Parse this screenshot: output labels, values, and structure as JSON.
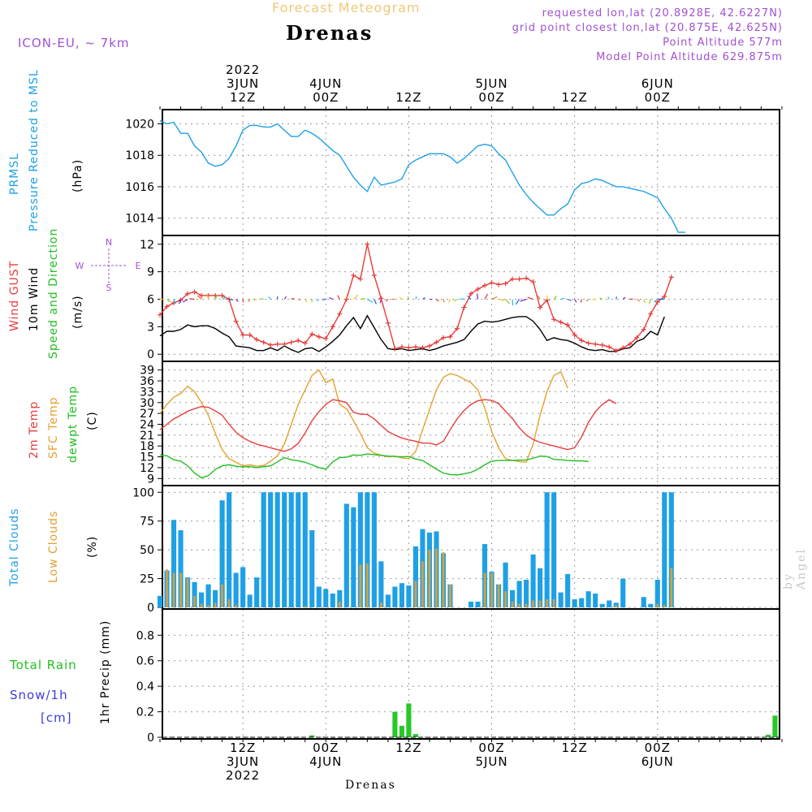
{
  "header": {
    "title": "Forecast Meteogram",
    "location": "Drenas",
    "model": "ICON-EU, ~ 7km",
    "requested": "requested lon,lat (20.8928E, 42.6227N)",
    "grid_point": "grid point closest lon,lat (20.875E, 42.625N)",
    "point_alt": "Point Altitude 577m",
    "model_alt": "Model Point Altitude 629.875m"
  },
  "footer_location": "Drenas",
  "watermark": "by Angel",
  "time_axis": {
    "top_labels": [
      {
        "hour": 12,
        "lines": [
          "2022",
          "3JUN",
          "12Z"
        ]
      },
      {
        "hour": 24,
        "lines": [
          "4JUN",
          "00Z"
        ]
      },
      {
        "hour": 36,
        "lines": [
          "12Z"
        ]
      },
      {
        "hour": 48,
        "lines": [
          "5JUN",
          "00Z"
        ]
      },
      {
        "hour": 60,
        "lines": [
          "12Z"
        ]
      },
      {
        "hour": 72,
        "lines": [
          "6JUN",
          "00Z"
        ]
      }
    ],
    "bottom_labels": [
      {
        "hour": 12,
        "lines": [
          "12Z",
          "3JUN",
          "2022"
        ]
      },
      {
        "hour": 24,
        "lines": [
          "00Z",
          "4JUN"
        ]
      },
      {
        "hour": 36,
        "lines": [
          "12Z"
        ]
      },
      {
        "hour": 48,
        "lines": [
          "00Z",
          "5JUN"
        ]
      },
      {
        "hour": 60,
        "lines": [
          "12Z"
        ]
      },
      {
        "hour": 72,
        "lines": [
          "00Z",
          "6JUN"
        ]
      }
    ]
  },
  "panel_labels": {
    "pressure": [
      {
        "text": "PRMSL",
        "color": "#1ea0e6"
      },
      {
        "text": "Pressure Reduced to MSL",
        "color": "#1ea0e6"
      },
      {
        "text": "(hPa)",
        "color": "#000000"
      }
    ],
    "wind": [
      {
        "text": "Wind GUST",
        "color": "#e83c3c"
      },
      {
        "text": "10m Wind",
        "color": "#000000"
      },
      {
        "text": "Speed and Direction",
        "color": "#20c020"
      },
      {
        "text": "(m/s)",
        "color": "#000000"
      }
    ],
    "wind_compass": {
      "n": "N",
      "s": "S",
      "w": "W",
      "e": "E"
    },
    "temp": [
      {
        "text": "2m Temp",
        "color": "#e83c3c"
      },
      {
        "text": "SFC Temp",
        "color": "#e6a030"
      },
      {
        "text": "dewpt Temp",
        "color": "#20c020"
      },
      {
        "text": "(C)",
        "color": "#000000"
      }
    ],
    "clouds": [
      {
        "text": "Total Clouds",
        "color": "#1ea0e6"
      },
      {
        "text": "Low Clouds",
        "color": "#e6a030"
      },
      {
        "text": "(%)",
        "color": "#000000"
      }
    ],
    "precip_left": [
      {
        "text": "Total  Rain",
        "color": "#20c020"
      },
      {
        "text": "Snow/1h",
        "color": "#3c3cdc"
      },
      {
        "text": "[cm]",
        "color": "#3c3cdc"
      }
    ],
    "precip_axis": "1hr Precip (mm)"
  },
  "colors": {
    "pressure": "#1ea0e6",
    "gust": "#e83c3c",
    "wind": "#000000",
    "t2m": "#e83c3c",
    "sfc": "#e6a030",
    "dew": "#20c020",
    "total_clouds": "#1ea0e6",
    "low_clouds": "#d6a040",
    "rain": "#28c828"
  },
  "chart_data": [
    {
      "type": "line",
      "name": "pressure",
      "ylim": [
        1013,
        1020.7
      ],
      "yticks": [
        1014,
        1016,
        1018,
        1020
      ],
      "series": [
        {
          "name": "PRMSL",
          "x": [
            0,
            1,
            2,
            3,
            4,
            5,
            6,
            7,
            8,
            9,
            10,
            11,
            12,
            13,
            14,
            15,
            16,
            17,
            18,
            19,
            20,
            21,
            22,
            23,
            24,
            25,
            26,
            27,
            28,
            29,
            30,
            31,
            32,
            33,
            34,
            35,
            36,
            37,
            38,
            39,
            40,
            41,
            42,
            43,
            44,
            45,
            46,
            47,
            48,
            49,
            50,
            51,
            52,
            53,
            54,
            55,
            56,
            57,
            58,
            59,
            60,
            61,
            62,
            63,
            64,
            65,
            66,
            67,
            68,
            69,
            70,
            71,
            72,
            73,
            74,
            75,
            76,
            77,
            78,
            79,
            80,
            81,
            82,
            83,
            84,
            85,
            86,
            87,
            88,
            89,
            90
          ],
          "values": [
            1020.2,
            1020.0,
            1020.1,
            1019.4,
            1019.4,
            1018.6,
            1018.2,
            1017.5,
            1017.3,
            1017.4,
            1017.8,
            1018.6,
            1019.6,
            1019.9,
            1019.9,
            1019.8,
            1019.8,
            1020.0,
            1019.6,
            1019.2,
            1019.2,
            1019.6,
            1019.4,
            1019.1,
            1018.7,
            1018.3,
            1018.0,
            1017.3,
            1016.6,
            1016.1,
            1015.7,
            1016.6,
            1016.1,
            1016.2,
            1016.3,
            1016.5,
            1017.4,
            1017.7,
            1017.9,
            1018.1,
            1018.1,
            1018.1,
            1017.9,
            1017.5,
            1017.8,
            1018.2,
            1018.6,
            1018.7,
            1018.6,
            1018.1,
            1017.7,
            1016.9,
            1016.1,
            1015.5,
            1015.0,
            1014.6,
            1014.2,
            1014.2,
            1014.6,
            1014.9,
            1015.8,
            1016.2,
            1016.3,
            1016.5,
            1016.4,
            1016.2,
            1016.0,
            1016.0,
            1015.9,
            1015.8,
            1015.7,
            1015.5,
            1015.3,
            1014.6,
            1014.0,
            1013.1,
            1013.1,
            null,
            null,
            null,
            null,
            null,
            null,
            null,
            null,
            null,
            null,
            null,
            null,
            null,
            null
          ]
        }
      ]
    },
    {
      "type": "line",
      "name": "wind",
      "ylim": [
        -0.6,
        12.6
      ],
      "yticks": [
        0,
        3,
        6,
        9,
        12
      ],
      "series": [
        {
          "name": "Wind GUST",
          "values": [
            4.3,
            5.2,
            5.6,
            5.9,
            6.6,
            6.8,
            6.4,
            6.4,
            6.4,
            6.4,
            6.0,
            3.6,
            2.1,
            2.1,
            1.6,
            1.3,
            1.0,
            1.1,
            1.1,
            1.3,
            1.5,
            1.2,
            2.2,
            1.9,
            1.7,
            3.0,
            4.4,
            6.0,
            8.6,
            8.2,
            12.0,
            8.6,
            6.1,
            3.4,
            0.6,
            0.8,
            0.7,
            0.8,
            0.7,
            0.9,
            1.3,
            1.8,
            1.9,
            2.8,
            5.1,
            6.6,
            7.1,
            7.5,
            7.8,
            7.6,
            7.7,
            8.2,
            8.2,
            8.3,
            7.9,
            5.1,
            5.9,
            3.8,
            3.5,
            3.2,
            2.1,
            1.5,
            1.2,
            1.1,
            1.0,
            0.8,
            0.4,
            0.7,
            1.1,
            1.8,
            2.7,
            4.4,
            5.7,
            6.3,
            8.4
          ]
        },
        {
          "name": "10m Wind",
          "values": [
            2.0,
            2.5,
            2.5,
            2.7,
            3.2,
            3.0,
            3.1,
            3.1,
            2.8,
            2.3,
            1.9,
            0.9,
            0.8,
            0.7,
            0.4,
            0.4,
            0.7,
            0.4,
            0.9,
            0.5,
            0.2,
            0.6,
            0.7,
            0.3,
            0.8,
            1.4,
            2.1,
            3.1,
            4.0,
            2.8,
            4.2,
            2.9,
            1.6,
            0.6,
            0.5,
            0.6,
            0.4,
            0.5,
            0.6,
            0.4,
            0.6,
            0.9,
            1.1,
            1.3,
            1.6,
            2.5,
            3.3,
            3.6,
            3.5,
            3.6,
            3.8,
            4.0,
            4.1,
            4.1,
            3.6,
            2.7,
            1.5,
            1.8,
            1.6,
            1.5,
            1.2,
            0.8,
            0.5,
            0.4,
            0.5,
            0.3,
            0.3,
            0.6,
            0.7,
            1.4,
            1.7,
            2.5,
            2.1,
            4.1,
            null
          ]
        }
      ]
    },
    {
      "type": "line",
      "name": "temperature",
      "ylim": [
        7.5,
        40.5
      ],
      "yticks": [
        9,
        12,
        15,
        18,
        21,
        24,
        27,
        30,
        33,
        36,
        39
      ],
      "series": [
        {
          "name": "2m Temp",
          "values": [
            22.5,
            24.0,
            25.5,
            26.5,
            27.6,
            28.3,
            28.9,
            28.7,
            27.7,
            26.5,
            24.0,
            21.8,
            20.3,
            19.3,
            18.5,
            18.0,
            17.5,
            17.0,
            16.5,
            17.2,
            18.7,
            21.6,
            25.0,
            27.5,
            29.5,
            30.8,
            30.5,
            30.0,
            27.3,
            26.8,
            26.7,
            25.5,
            23.7,
            22.0,
            21.0,
            20.2,
            19.7,
            19.3,
            18.8,
            18.8,
            18.3,
            19.3,
            22.5,
            25.5,
            27.8,
            29.5,
            30.5,
            30.8,
            30.6,
            29.7,
            27.6,
            25.6,
            23.0,
            21.0,
            19.8,
            19.0,
            18.5,
            18.0,
            17.5,
            17.0,
            17.5,
            20.5,
            24.5,
            27.5,
            29.5,
            30.8,
            29.7
          ]
        },
        {
          "name": "SFC Temp",
          "values": [
            27.0,
            29.5,
            31.5,
            32.5,
            34.5,
            33.0,
            30.0,
            26.5,
            21.5,
            17.0,
            14.5,
            13.5,
            12.5,
            12.8,
            12.4,
            12.6,
            13.8,
            15.3,
            18.5,
            24.0,
            29.5,
            33.5,
            37.5,
            39.0,
            35.5,
            36.5,
            29.5,
            28.3,
            25.0,
            21.5,
            17.5,
            16.0,
            15.5,
            15.0,
            15.2,
            14.7,
            14.5,
            16.5,
            22.5,
            28.0,
            33.5,
            37.0,
            38.0,
            37.5,
            36.5,
            35.5,
            33.5,
            28.5,
            22.0,
            17.5,
            14.5,
            14.0,
            13.7,
            13.5,
            18.5,
            26.5,
            33.0,
            37.5,
            38.5,
            34.0
          ]
        },
        {
          "name": "dewpt Temp",
          "values": [
            15.5,
            15.3,
            14.2,
            13.8,
            12.5,
            10.5,
            9.2,
            9.8,
            11.5,
            12.5,
            12.8,
            12.4,
            12.2,
            12.3,
            12.0,
            12.3,
            12.5,
            13.6,
            14.8,
            14.2,
            13.9,
            13.5,
            12.8,
            12.0,
            11.6,
            13.6,
            14.8,
            14.9,
            15.5,
            15.4,
            15.8,
            15.6,
            15.4,
            15.2,
            15.1,
            15.0,
            15.1,
            14.4,
            14.0,
            12.8,
            11.6,
            10.5,
            10.1,
            10.0,
            10.3,
            10.7,
            11.6,
            12.8,
            13.8,
            14.0,
            14.0,
            14.0,
            14.1,
            14.1,
            14.6,
            15.2,
            15.1,
            14.3,
            14.2,
            14.0,
            13.9,
            13.9,
            13.7
          ]
        }
      ]
    },
    {
      "type": "bar",
      "name": "clouds",
      "ylim": [
        0,
        103
      ],
      "yticks": [
        0,
        25,
        50,
        75,
        100
      ],
      "series": [
        {
          "name": "Total Clouds",
          "values": [
            10,
            32,
            76,
            67,
            26,
            22,
            13,
            20,
            15,
            93,
            100,
            30,
            35,
            11,
            26,
            100,
            100,
            100,
            100,
            100,
            100,
            100,
            67,
            18,
            16,
            12,
            15,
            90,
            87,
            100,
            100,
            100,
            40,
            11,
            18,
            21,
            19,
            53,
            68,
            65,
            66,
            47,
            20,
            0,
            0,
            5,
            5,
            55,
            31,
            20,
            39,
            15,
            23,
            24,
            46,
            34,
            100,
            100,
            13,
            29,
            7,
            8,
            14,
            12,
            3,
            6,
            4,
            25,
            0,
            0,
            9,
            3,
            24,
            100,
            100
          ]
        },
        {
          "name": "Low Clouds",
          "values": [
            0,
            33,
            30,
            30,
            25,
            10,
            3,
            2,
            4,
            20,
            7,
            2,
            0,
            0,
            0,
            0,
            0,
            0,
            0,
            0,
            0,
            1,
            0,
            0,
            0,
            0,
            5,
            0,
            0,
            37,
            38,
            0,
            4,
            0,
            0,
            0,
            0,
            23,
            40,
            50,
            51,
            48,
            20,
            0,
            0,
            0,
            0,
            30,
            30,
            20,
            14,
            5,
            3,
            3,
            6,
            6,
            7,
            7,
            0,
            0,
            0,
            0,
            0,
            0,
            0,
            0,
            2,
            0,
            0,
            0,
            0,
            0,
            3,
            2,
            34
          ]
        }
      ]
    },
    {
      "type": "bar",
      "name": "precipitation",
      "ylim": [
        0,
        0.98
      ],
      "yticks": [
        0,
        0.2,
        0.4,
        0.6,
        0.8
      ],
      "series": [
        {
          "name": "1hr Precip",
          "x": [
            22,
            34,
            35,
            36,
            37,
            88,
            89
          ],
          "values": [
            0.015,
            0.2,
            0.09,
            0.265,
            0.025,
            0.02,
            0.17
          ]
        }
      ]
    }
  ]
}
